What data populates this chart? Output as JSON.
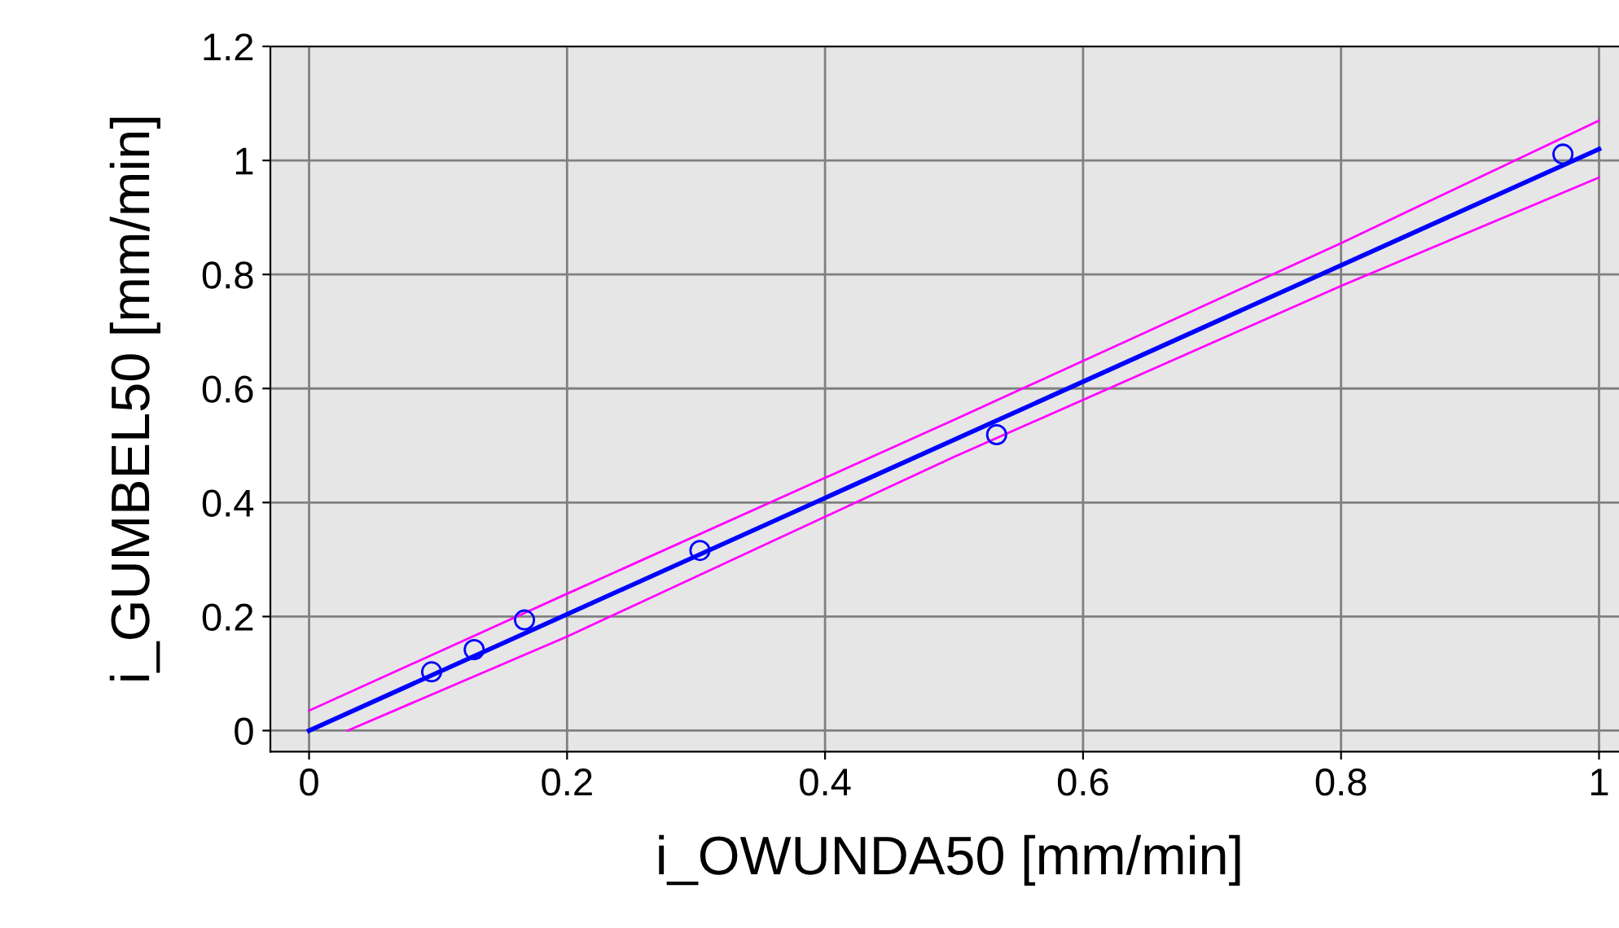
{
  "chart_data": {
    "type": "line",
    "xlabel": "i_OWUNDA50 [mm/min]",
    "ylabel": "i_GUMBEL50 [mm/min]",
    "xlim": [
      -0.03,
      1.023
    ],
    "ylim": [
      -0.037,
      1.2
    ],
    "xticks": [
      0,
      0.2,
      0.4,
      0.6,
      0.8,
      1
    ],
    "yticks": [
      0,
      0.2,
      0.4,
      0.6,
      0.8,
      1,
      1.2
    ],
    "grid": true,
    "series": [
      {
        "type": "line",
        "color": "#ff00ff",
        "x": [
          0,
          0.2,
          0.5,
          0.8,
          1
        ],
        "values": [
          0.035,
          0.24,
          0.545,
          0.855,
          1.07
        ]
      },
      {
        "type": "line",
        "color": "#ff00ff",
        "x": [
          0.03,
          0.2,
          0.5,
          0.8,
          1
        ],
        "values": [
          0,
          0.165,
          0.48,
          0.78,
          0.97
        ]
      },
      {
        "color": "#0000ff",
        "x": [
          0,
          1
        ],
        "values": [
          0,
          1.02
        ]
      },
      {
        "type": "scatter",
        "color": "#0000ff",
        "marker": "circle",
        "x": [
          0.095,
          0.128,
          0.167,
          0.303,
          0.533,
          0.972
        ],
        "values": [
          0.103,
          0.142,
          0.194,
          0.316,
          0.519,
          1.011
        ]
      }
    ]
  }
}
